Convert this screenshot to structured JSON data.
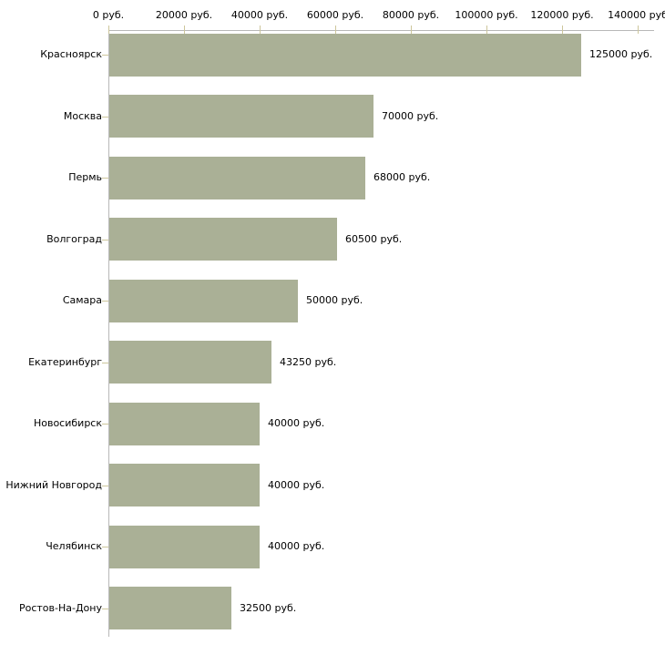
{
  "chart_data": {
    "type": "bar",
    "orientation": "horizontal",
    "title": "",
    "categories": [
      "Красноярск",
      "Москва",
      "Пермь",
      "Волгоград",
      "Самара",
      "Екатеринбург",
      "Новосибирск",
      "Нижний Новгород",
      "Челябинск",
      "Ростов-На-Дону"
    ],
    "values": [
      125000,
      70000,
      68000,
      60500,
      50000,
      43250,
      40000,
      40000,
      40000,
      32500
    ],
    "value_labels": [
      "125000 руб.",
      "70000 руб.",
      "68000 руб.",
      "60500 руб.",
      "50000 руб.",
      "43250 руб.",
      "40000 руб.",
      "40000 руб.",
      "40000 руб.",
      "32500 руб."
    ],
    "x_axis": {
      "position": "top",
      "range": [
        0,
        140000
      ],
      "ticks": [
        0,
        20000,
        40000,
        60000,
        80000,
        100000,
        120000,
        140000
      ],
      "tick_labels": [
        "0 руб.",
        "20000 руб.",
        "40000 руб.",
        "60000 руб.",
        "80000 руб.",
        "100000 руб.",
        "120000 руб.",
        "140000 руб"
      ]
    },
    "grid": false,
    "legend": false,
    "colors": {
      "bar": "#aab096",
      "axis_line": "#b8b8b8",
      "tick_mark": "#cdc69b",
      "text": "#000000",
      "background": "#ffffff"
    }
  }
}
